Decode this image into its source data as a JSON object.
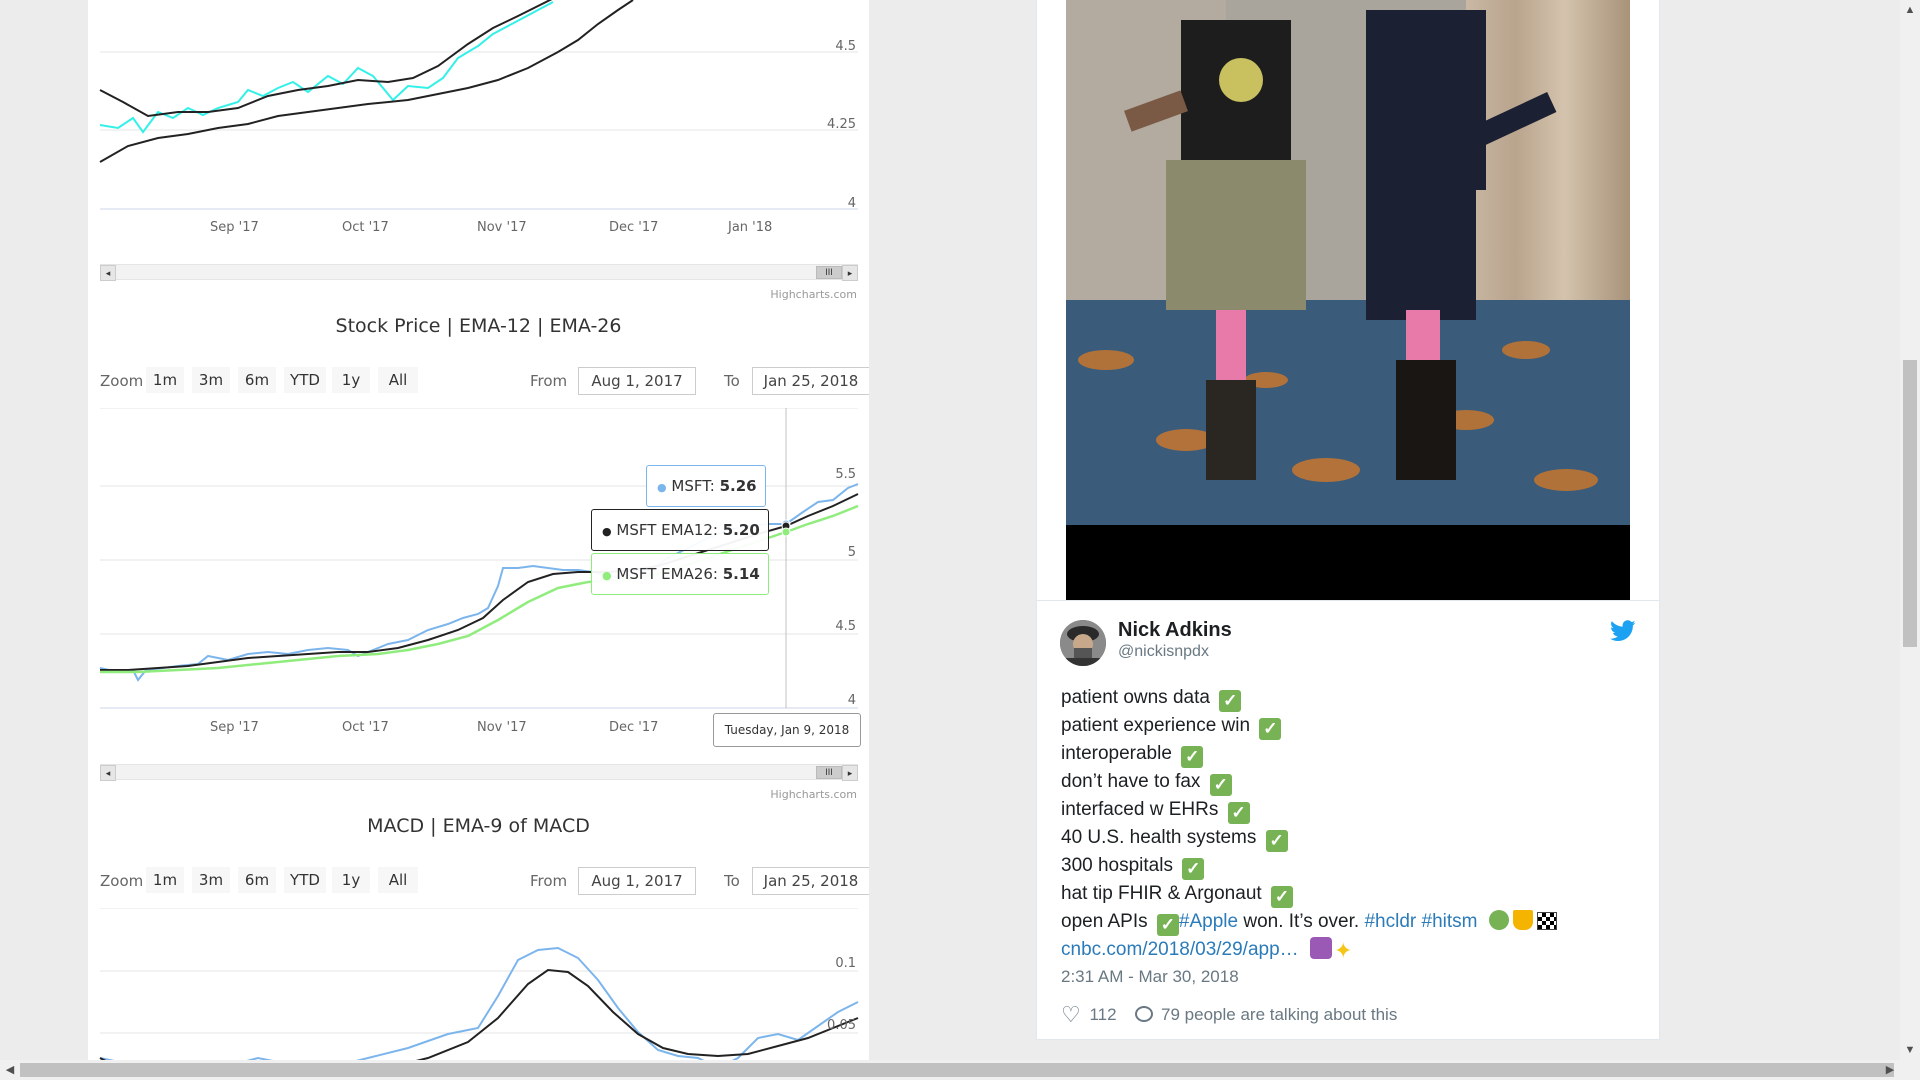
{
  "chart1": {
    "y_ticks": [
      "4.5",
      "4.25",
      "4"
    ],
    "x_ticks": [
      "Sep '17",
      "Oct '17",
      "Nov '17",
      "Dec '17",
      "Jan '18"
    ],
    "credits": "Highcharts.com"
  },
  "chart2": {
    "title": "Stock Price | EMA-12 | EMA-26",
    "zoom": {
      "label": "Zoom",
      "buttons": [
        "1m",
        "3m",
        "6m",
        "YTD",
        "1y",
        "All"
      ],
      "from_label": "From",
      "from_value": "Aug 1, 2017",
      "to_label": "To",
      "to_value": "Jan 25, 2018"
    },
    "y_ticks": [
      "5.5",
      "5",
      "4.5",
      "4"
    ],
    "x_ticks": [
      "Sep '17",
      "Oct '17",
      "Nov '17",
      "Dec '17"
    ],
    "tooltip": {
      "msft_label": "MSFT",
      "msft_value": "5.26",
      "ema12_label": "MSFT EMA12",
      "ema12_value": "5.20",
      "ema26_label": "MSFT EMA26",
      "ema26_value": "5.14",
      "date": "Tuesday, Jan 9, 2018"
    },
    "credits": "Highcharts.com"
  },
  "chart3": {
    "title": "MACD | EMA-9 of MACD",
    "zoom": {
      "label": "Zoom",
      "buttons": [
        "1m",
        "3m",
        "6m",
        "YTD",
        "1y",
        "All"
      ],
      "from_label": "From",
      "from_value": "Aug 1, 2017",
      "to_label": "To",
      "to_value": "Jan 25, 2018"
    },
    "y_ticks": [
      "0.1",
      "0.05"
    ]
  },
  "colors": {
    "msft": "#7cb5ec",
    "ema12": "#222222",
    "ema26": "#90ed7d",
    "cyan": "#33f0e8",
    "twitter_blue": "#1da1f2",
    "check_green": "#77b255"
  },
  "tweet": {
    "name": "Nick Adkins",
    "handle": "@nickisnpdx",
    "lines": {
      "l1": "patient owns data",
      "l2": "patient experience win",
      "l3": "interoperable",
      "l4": "don’t have to fax",
      "l5": "interfaced w EHRs",
      "l6": "40 U.S. health systems",
      "l7": "300 hospitals",
      "l8": "hat tip FHIR & Argonaut",
      "l9_a": "open APIs",
      "l9_tag1": "#Apple",
      "l9_b": " won. It’s over. ",
      "l9_tag2": "#hcldr",
      "l9_tag3": "#hitsm",
      "l10_link": "cnbc.com/2018/03/29/app…"
    },
    "check_glyph": "✓",
    "timestamp": "2:31 AM - Mar 30, 2018",
    "likes": "112",
    "talking": "79 people are talking about this",
    "icons": [
      "twitter-bird-icon",
      "heart-icon",
      "speech-bubble-icon"
    ]
  }
}
